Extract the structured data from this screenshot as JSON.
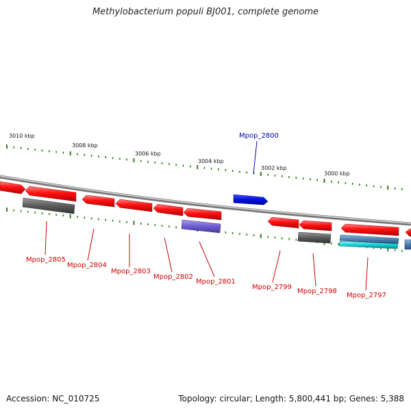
{
  "title": "Methylobacterium populi BJ001, complete genome",
  "footer": {
    "accession": "Accession: NC_010725",
    "summary": "Topology: circular; Length: 5,800,441 bp; Genes: 5,388"
  },
  "ruler_labels": [
    "3010 kbp",
    "3008 kbp",
    "3006 kbp",
    "3004 kbp",
    "3002 kbp",
    "3000 kbp"
  ],
  "genes": [
    {
      "locus": "Mpop_2805",
      "color": "#e01010",
      "labeled": true
    },
    {
      "locus": "Mpop_2804",
      "color": "#e01010",
      "labeled": true
    },
    {
      "locus": "Mpop_2803",
      "color": "#e01010",
      "labeled": true
    },
    {
      "locus": "Mpop_2802",
      "color": "#e01010",
      "labeled": true
    },
    {
      "locus": "Mpop_2801",
      "color": "#e01010",
      "labeled": true
    },
    {
      "locus": "Mpop_2800",
      "color": "#0000cc",
      "labeled": true
    },
    {
      "locus": "Mpop_2799",
      "color": "#e01010",
      "labeled": true
    },
    {
      "locus": "Mpop_2798",
      "color": "#e01010",
      "labeled": true
    },
    {
      "locus": "Mpop_2797",
      "color": "#e01010",
      "labeled": true
    }
  ],
  "colors": {
    "cds_red": "#e01010",
    "cds_blue": "#0010dd",
    "feature_gray": "#555555",
    "feature_purple": "#6b5bd0",
    "feature_steel": "#4a7fb0",
    "feature_cyan": "#10d0d8",
    "ticks_green": "#2e7d1a",
    "label_red": "#cc0000",
    "label_blue": "#0000aa",
    "backbone": "#888888"
  }
}
